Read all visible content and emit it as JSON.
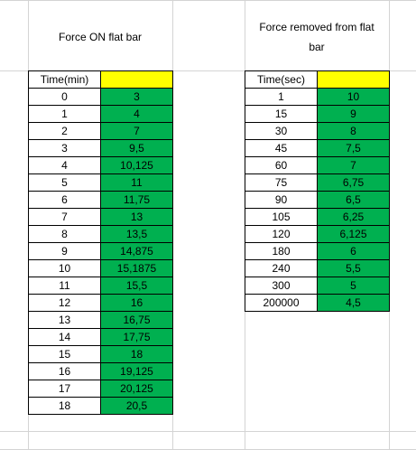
{
  "left_block": {
    "caption": "Force ON flat bar",
    "header_time": "Time(min)",
    "header_value": "",
    "rows": [
      {
        "time": "0",
        "value": "3"
      },
      {
        "time": "1",
        "value": "4"
      },
      {
        "time": "2",
        "value": "7"
      },
      {
        "time": "3",
        "value": "9,5"
      },
      {
        "time": "4",
        "value": "10,125"
      },
      {
        "time": "5",
        "value": "11"
      },
      {
        "time": "6",
        "value": "11,75"
      },
      {
        "time": "7",
        "value": "13"
      },
      {
        "time": "8",
        "value": "13,5"
      },
      {
        "time": "9",
        "value": "14,875"
      },
      {
        "time": "10",
        "value": "15,1875"
      },
      {
        "time": "11",
        "value": "15,5"
      },
      {
        "time": "12",
        "value": "16"
      },
      {
        "time": "13",
        "value": "16,75"
      },
      {
        "time": "14",
        "value": "17,75"
      },
      {
        "time": "15",
        "value": "18"
      },
      {
        "time": "16",
        "value": "19,125"
      },
      {
        "time": "17",
        "value": "20,125"
      },
      {
        "time": "18",
        "value": "20,5"
      }
    ]
  },
  "right_block": {
    "caption_line1": "Force removed from flat",
    "caption_line2": "bar",
    "header_time": "Time(sec)",
    "header_value": "",
    "rows": [
      {
        "time": "1",
        "value": "10"
      },
      {
        "time": "15",
        "value": "9"
      },
      {
        "time": "30",
        "value": "8"
      },
      {
        "time": "45",
        "value": "7,5"
      },
      {
        "time": "60",
        "value": "7"
      },
      {
        "time": "75",
        "value": "6,75"
      },
      {
        "time": "90",
        "value": "6,5"
      },
      {
        "time": "105",
        "value": "6,25"
      },
      {
        "time": "120",
        "value": "6,125"
      },
      {
        "time": "180",
        "value": "6"
      },
      {
        "time": "240",
        "value": "5,5"
      },
      {
        "time": "300",
        "value": "5"
      },
      {
        "time": "200000",
        "value": "4,5"
      }
    ]
  },
  "colors": {
    "value_fill": "#00b050",
    "header_fill": "#ffff00",
    "gridline": "#d4d4d4"
  }
}
